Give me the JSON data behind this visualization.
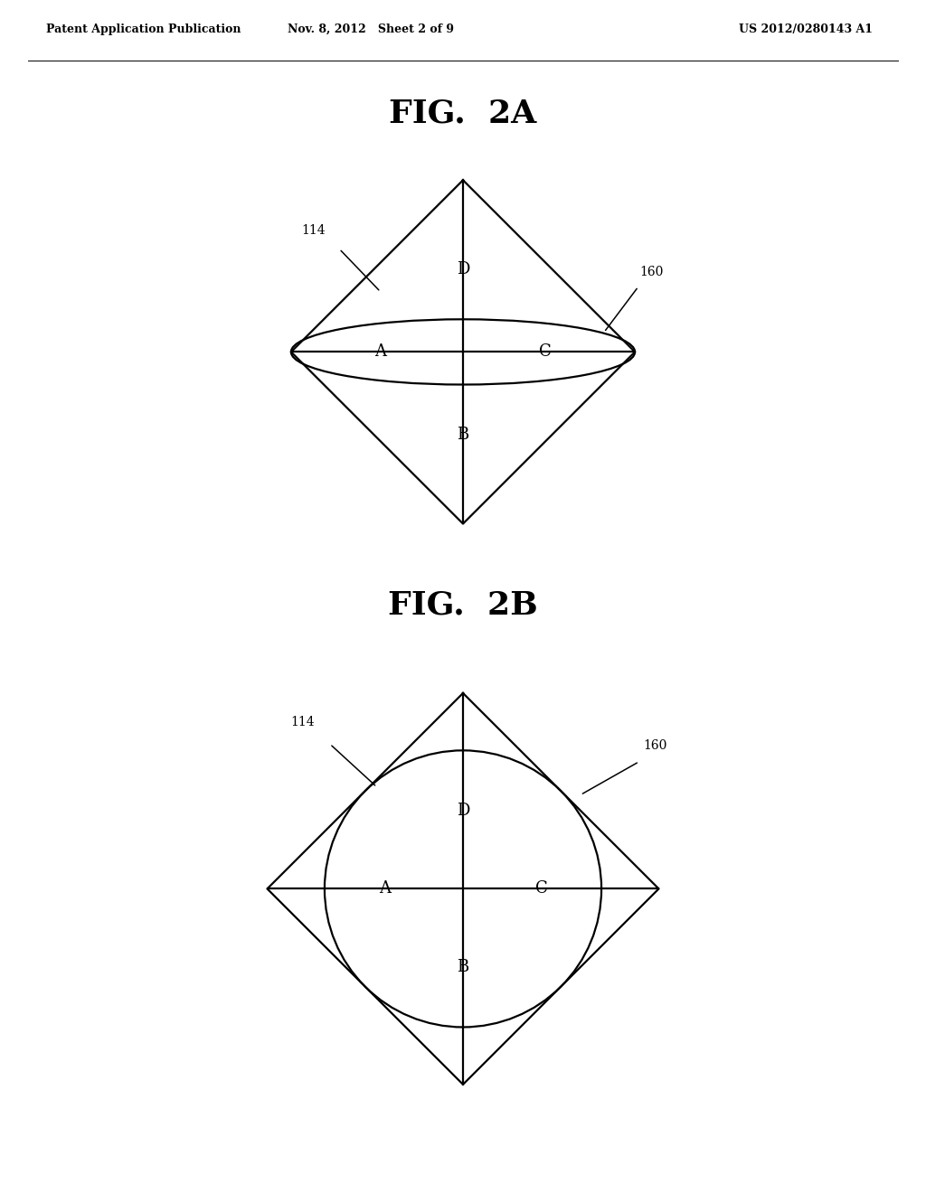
{
  "background_color": "#ffffff",
  "header_left": "Patent Application Publication",
  "header_center": "Nov. 8, 2012   Sheet 2 of 9",
  "header_right": "US 2012/0280143 A1",
  "fig2a_title": "FIG.  2A",
  "fig2b_title": "FIG.  2B",
  "label_114": "114",
  "label_160": "160",
  "line_color": "#000000",
  "line_width": 1.6,
  "font_size_header": 9,
  "font_size_fig": 26,
  "font_size_label": 13,
  "font_size_annot": 10
}
